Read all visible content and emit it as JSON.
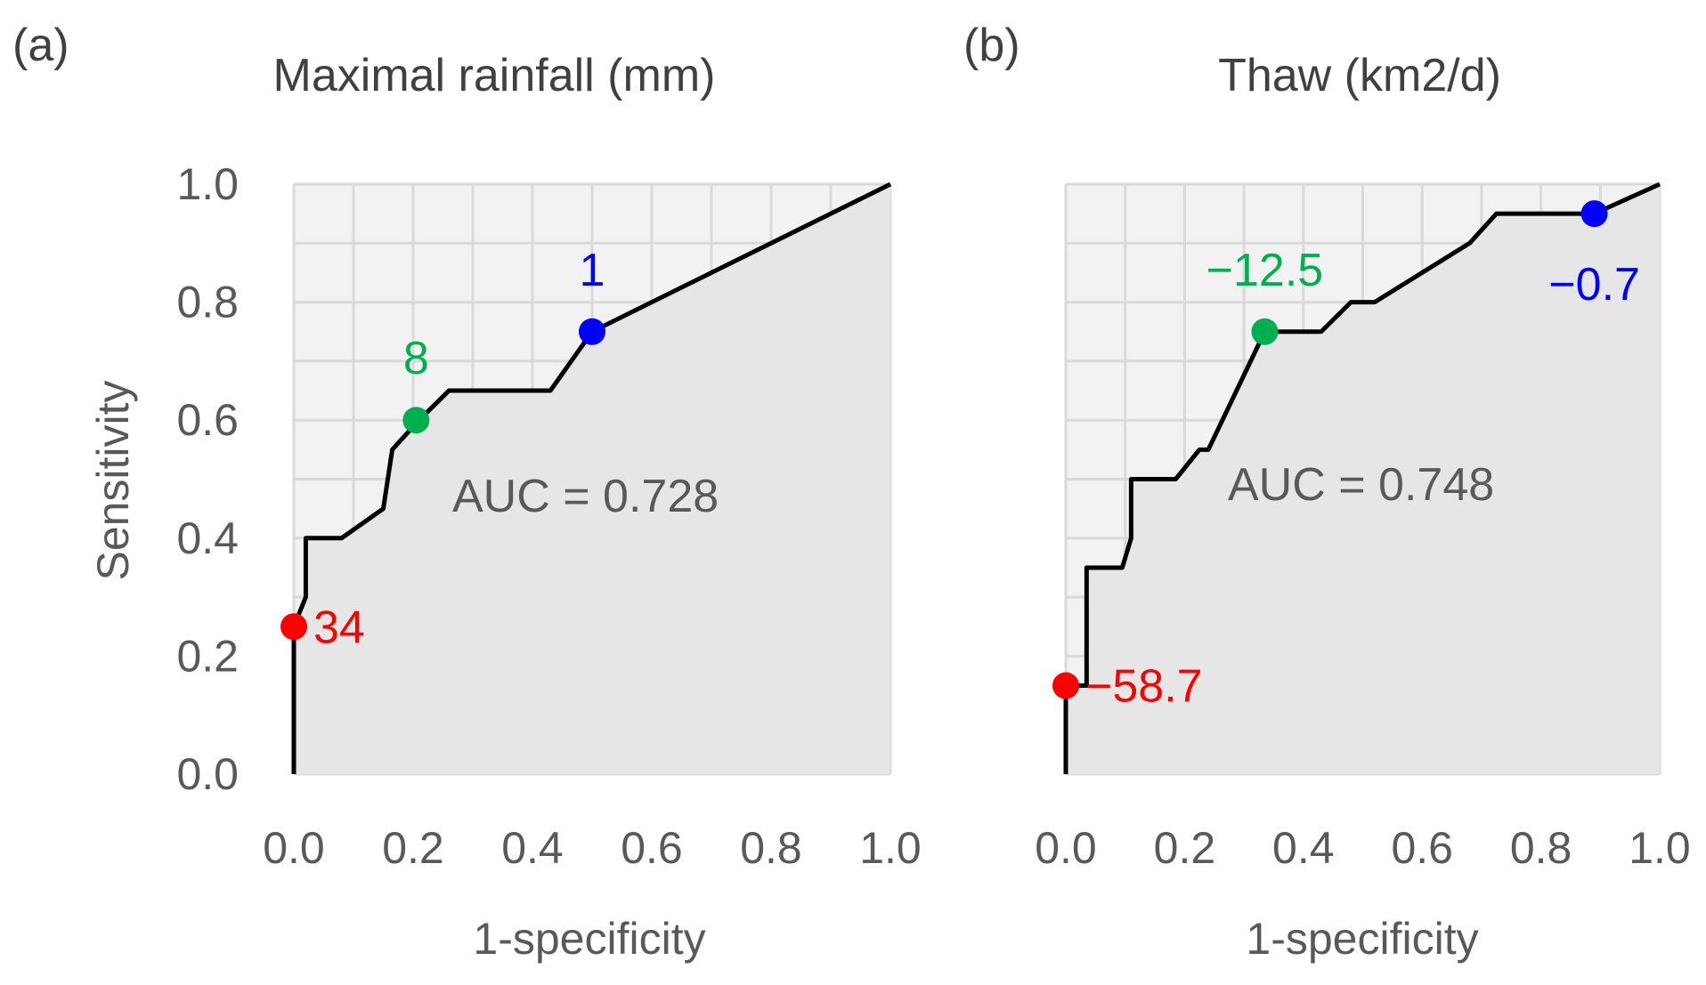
{
  "figure": {
    "background": "#ffffff",
    "plot_background": "#f2f2f2",
    "grid_color": "#d9d9d9",
    "area_fill": "#e6e6e6",
    "line_color": "#000000",
    "text_color": "#404040"
  },
  "chart_data": [
    {
      "type": "line",
      "panel_label": "(a)",
      "title": "Maximal rainfall (mm)",
      "xlabel": "1-specificity",
      "ylabel": "Sensitivity",
      "xlim": [
        0,
        1
      ],
      "ylim": [
        0,
        1
      ],
      "xticks": [
        "0.0",
        "0.2",
        "0.4",
        "0.6",
        "0.8",
        "1.0"
      ],
      "yticks": [
        "0.0",
        "0.2",
        "0.4",
        "0.6",
        "0.8",
        "1.0"
      ],
      "grid": true,
      "annotation": "AUC = 0.728",
      "roc_curve": [
        [
          0,
          0
        ],
        [
          0,
          0.25
        ],
        [
          0.02,
          0.3
        ],
        [
          0.02,
          0.4
        ],
        [
          0.08,
          0.4
        ],
        [
          0.15,
          0.45
        ],
        [
          0.165,
          0.55
        ],
        [
          0.21,
          0.6
        ],
        [
          0.26,
          0.65
        ],
        [
          0.43,
          0.65
        ],
        [
          0.5,
          0.75
        ],
        [
          1,
          1
        ]
      ],
      "thresholds": [
        {
          "x": 0.0,
          "y": 0.25,
          "label": "34",
          "color": "#ff0000",
          "label_pos": "right"
        },
        {
          "x": 0.205,
          "y": 0.6,
          "label": "8",
          "color": "#00b050",
          "label_pos": "above"
        },
        {
          "x": 0.5,
          "y": 0.75,
          "label": "1",
          "color": "#0000ff",
          "label_pos": "above"
        }
      ]
    },
    {
      "type": "line",
      "panel_label": "(b)",
      "title": "Thaw (km2/d)",
      "xlabel": "1-specificity",
      "ylabel": "",
      "xlim": [
        0,
        1
      ],
      "ylim": [
        0,
        1
      ],
      "xticks": [
        "0.0",
        "0.2",
        "0.4",
        "0.6",
        "0.8",
        "1.0"
      ],
      "yticks": [],
      "grid": true,
      "annotation": "AUC = 0.748",
      "roc_curve": [
        [
          0,
          0
        ],
        [
          0,
          0.15
        ],
        [
          0.035,
          0.15
        ],
        [
          0.035,
          0.35
        ],
        [
          0.095,
          0.35
        ],
        [
          0.11,
          0.4
        ],
        [
          0.11,
          0.5
        ],
        [
          0.185,
          0.5
        ],
        [
          0.225,
          0.55
        ],
        [
          0.24,
          0.55
        ],
        [
          0.335,
          0.75
        ],
        [
          0.43,
          0.75
        ],
        [
          0.48,
          0.8
        ],
        [
          0.52,
          0.8
        ],
        [
          0.68,
          0.9
        ],
        [
          0.725,
          0.95
        ],
        [
          0.89,
          0.95
        ],
        [
          1,
          1
        ]
      ],
      "thresholds": [
        {
          "x": 0.0,
          "y": 0.15,
          "label": "−58.7",
          "color": "#ff0000",
          "label_pos": "right"
        },
        {
          "x": 0.335,
          "y": 0.75,
          "label": "−12.5",
          "color": "#00b050",
          "label_pos": "above"
        },
        {
          "x": 0.89,
          "y": 0.95,
          "label": "−0.7",
          "color": "#0000ff",
          "label_pos": "below"
        }
      ]
    }
  ]
}
